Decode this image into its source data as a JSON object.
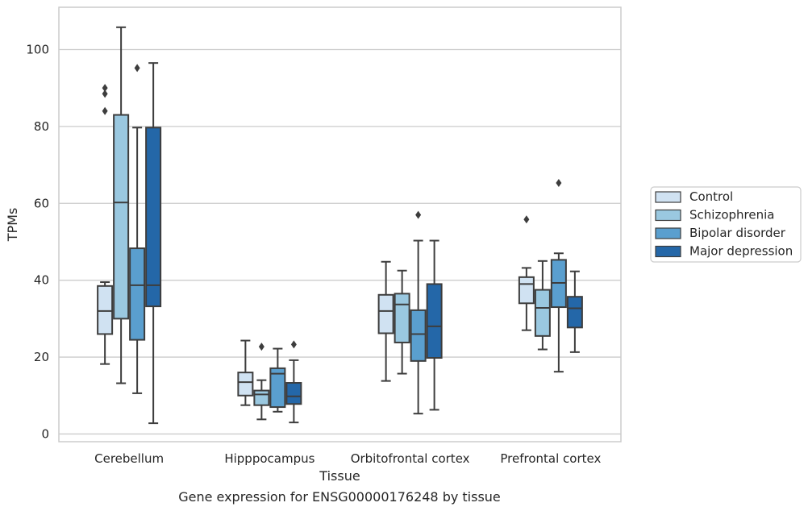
{
  "chart_data": {
    "type": "box",
    "caption": "Gene expression for ENSG00000176248 by tissue",
    "xlabel": "Tissue",
    "ylabel": "TPMs",
    "ylim": [
      -2,
      111
    ],
    "yticks": [
      0,
      20,
      40,
      60,
      80,
      100
    ],
    "grid": "horizontal",
    "legend_position": "right",
    "categories": [
      "Cerebellum",
      "Hipppocampus",
      "Orbitofrontal cortex",
      "Prefrontal cortex"
    ],
    "series": [
      {
        "name": "Control",
        "color": "#d0e2f2",
        "boxes": [
          {
            "whisker_low": 18.2,
            "q1": 26,
            "median": 32,
            "q3": 38.5,
            "whisker_high": 39.5,
            "outliers": [
              84,
              88.5,
              90
            ]
          },
          {
            "whisker_low": 7.5,
            "q1": 10,
            "median": 13.5,
            "q3": 16,
            "whisker_high": 24.3,
            "outliers": []
          },
          {
            "whisker_low": 13.8,
            "q1": 26.2,
            "median": 32,
            "q3": 36.2,
            "whisker_high": 44.8,
            "outliers": []
          },
          {
            "whisker_low": 27,
            "q1": 34,
            "median": 39,
            "q3": 40.8,
            "whisker_high": 43.2,
            "outliers": [
              55.8
            ]
          }
        ]
      },
      {
        "name": "Schizophrenia",
        "color": "#9ac8e0",
        "boxes": [
          {
            "whisker_low": 13.2,
            "q1": 30,
            "median": 60.2,
            "q3": 83,
            "whisker_high": 105.8,
            "outliers": []
          },
          {
            "whisker_low": 3.8,
            "q1": 7.5,
            "median": 10.3,
            "q3": 11.3,
            "whisker_high": 14,
            "outliers": [
              22.7
            ]
          },
          {
            "whisker_low": 15.7,
            "q1": 23.8,
            "median": 33.7,
            "q3": 36.5,
            "whisker_high": 42.5,
            "outliers": []
          },
          {
            "whisker_low": 22,
            "q1": 25.5,
            "median": 32.8,
            "q3": 37.5,
            "whisker_high": 45,
            "outliers": []
          }
        ]
      },
      {
        "name": "Bipolar disorder",
        "color": "#5a9fcf",
        "boxes": [
          {
            "whisker_low": 10.6,
            "q1": 24.5,
            "median": 38.7,
            "q3": 48.3,
            "whisker_high": 79.7,
            "outliers": [
              95.2
            ]
          },
          {
            "whisker_low": 5.8,
            "q1": 7,
            "median": 15.7,
            "q3": 17.1,
            "whisker_high": 22.2,
            "outliers": []
          },
          {
            "whisker_low": 5.3,
            "q1": 19,
            "median": 26,
            "q3": 32.2,
            "whisker_high": 50.3,
            "outliers": [
              57
            ]
          },
          {
            "whisker_low": 16.2,
            "q1": 33,
            "median": 39.3,
            "q3": 45.3,
            "whisker_high": 47,
            "outliers": [
              65.3
            ]
          }
        ]
      },
      {
        "name": "Major depression",
        "color": "#2467a8",
        "boxes": [
          {
            "whisker_low": 2.8,
            "q1": 33.2,
            "median": 38.7,
            "q3": 79.7,
            "whisker_high": 96.5,
            "outliers": []
          },
          {
            "whisker_low": 3,
            "q1": 7.8,
            "median": 9.8,
            "q3": 13.3,
            "whisker_high": 19.2,
            "outliers": [
              23.3
            ]
          },
          {
            "whisker_low": 6.3,
            "q1": 19.8,
            "median": 28,
            "q3": 39,
            "whisker_high": 50.3,
            "outliers": []
          },
          {
            "whisker_low": 21.3,
            "q1": 27.7,
            "median": 32.7,
            "q3": 35.7,
            "whisker_high": 42.3,
            "outliers": []
          }
        ]
      }
    ]
  }
}
